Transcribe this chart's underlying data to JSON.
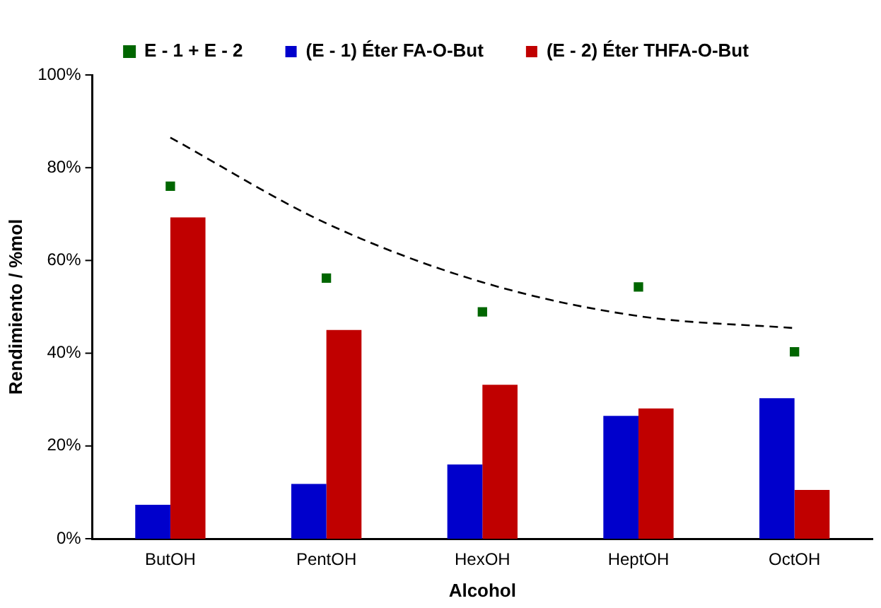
{
  "chart_data": {
    "type": "bar",
    "xlabel": "Alcohol",
    "ylabel": "Rendimiento / %mol",
    "categories": [
      "ButOH",
      "PentOH",
      "HexOH",
      "HeptOH",
      "OctOH"
    ],
    "series": [
      {
        "name": "(E - 1) Éter FA-O-But",
        "color": "#0000cc",
        "values": [
          7.3,
          11.8,
          16,
          26.5,
          30.3
        ]
      },
      {
        "name": "(E - 2) Éter THFA-O-But",
        "color": "#c00000",
        "values": [
          69.3,
          45,
          33.2,
          28.1,
          10.5
        ]
      },
      {
        "name": "E - 1 + E - 2",
        "type": "scatter",
        "marker": "square",
        "color": "#006600",
        "values": [
          76,
          56.2,
          48.9,
          54.3,
          40.3
        ]
      },
      {
        "type": "line",
        "line_style": "dashed",
        "color": "#000000",
        "values": [
          86.5,
          68,
          55.3,
          48,
          45.4
        ]
      }
    ],
    "ylim": [
      0,
      100
    ],
    "yticks": [
      {
        "value": 0,
        "label": "0%"
      },
      {
        "value": 20,
        "label": "20%"
      },
      {
        "value": 40,
        "label": "40%"
      },
      {
        "value": 60,
        "label": "60%"
      },
      {
        "value": 80,
        "label": "80%"
      },
      {
        "value": 100,
        "label": "100%"
      }
    ],
    "grid": false,
    "legend": "top"
  }
}
